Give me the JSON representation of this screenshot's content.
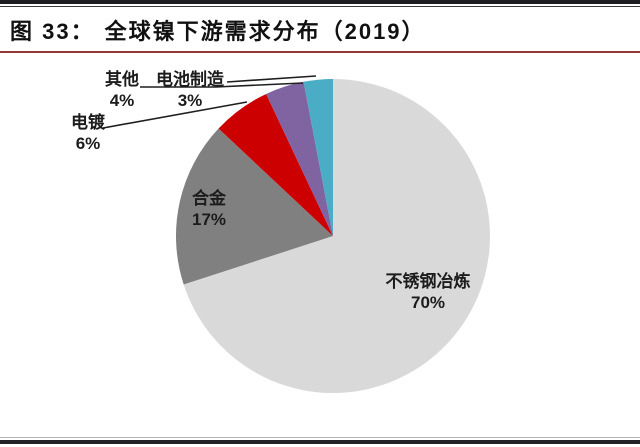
{
  "header": {
    "figure_label": "图 33：",
    "title": "全球镍下游需求分布（2019）"
  },
  "palette": {
    "title_text": "#111111",
    "divider_red": "#953735",
    "rule_dark": "#1e1e22",
    "label_text": "#1c1c1c"
  },
  "chart_data": {
    "type": "pie",
    "title": "全球镍下游需求分布（2019）",
    "start_angle_deg": 0,
    "direction": "clockwise",
    "legend": "none",
    "slices": [
      {
        "name": "不锈钢冶炼",
        "value": 70,
        "label": "70%",
        "color": "#d9d9d9"
      },
      {
        "name": "合金",
        "value": 17,
        "label": "17%",
        "color": "#808080"
      },
      {
        "name": "电镀",
        "value": 6,
        "label": "6%",
        "color": "#cc0000"
      },
      {
        "name": "其他",
        "value": 4,
        "label": "4%",
        "color": "#8064a2"
      },
      {
        "name": "电池制造",
        "value": 3,
        "label": "3%",
        "color": "#4bacc6"
      }
    ]
  }
}
